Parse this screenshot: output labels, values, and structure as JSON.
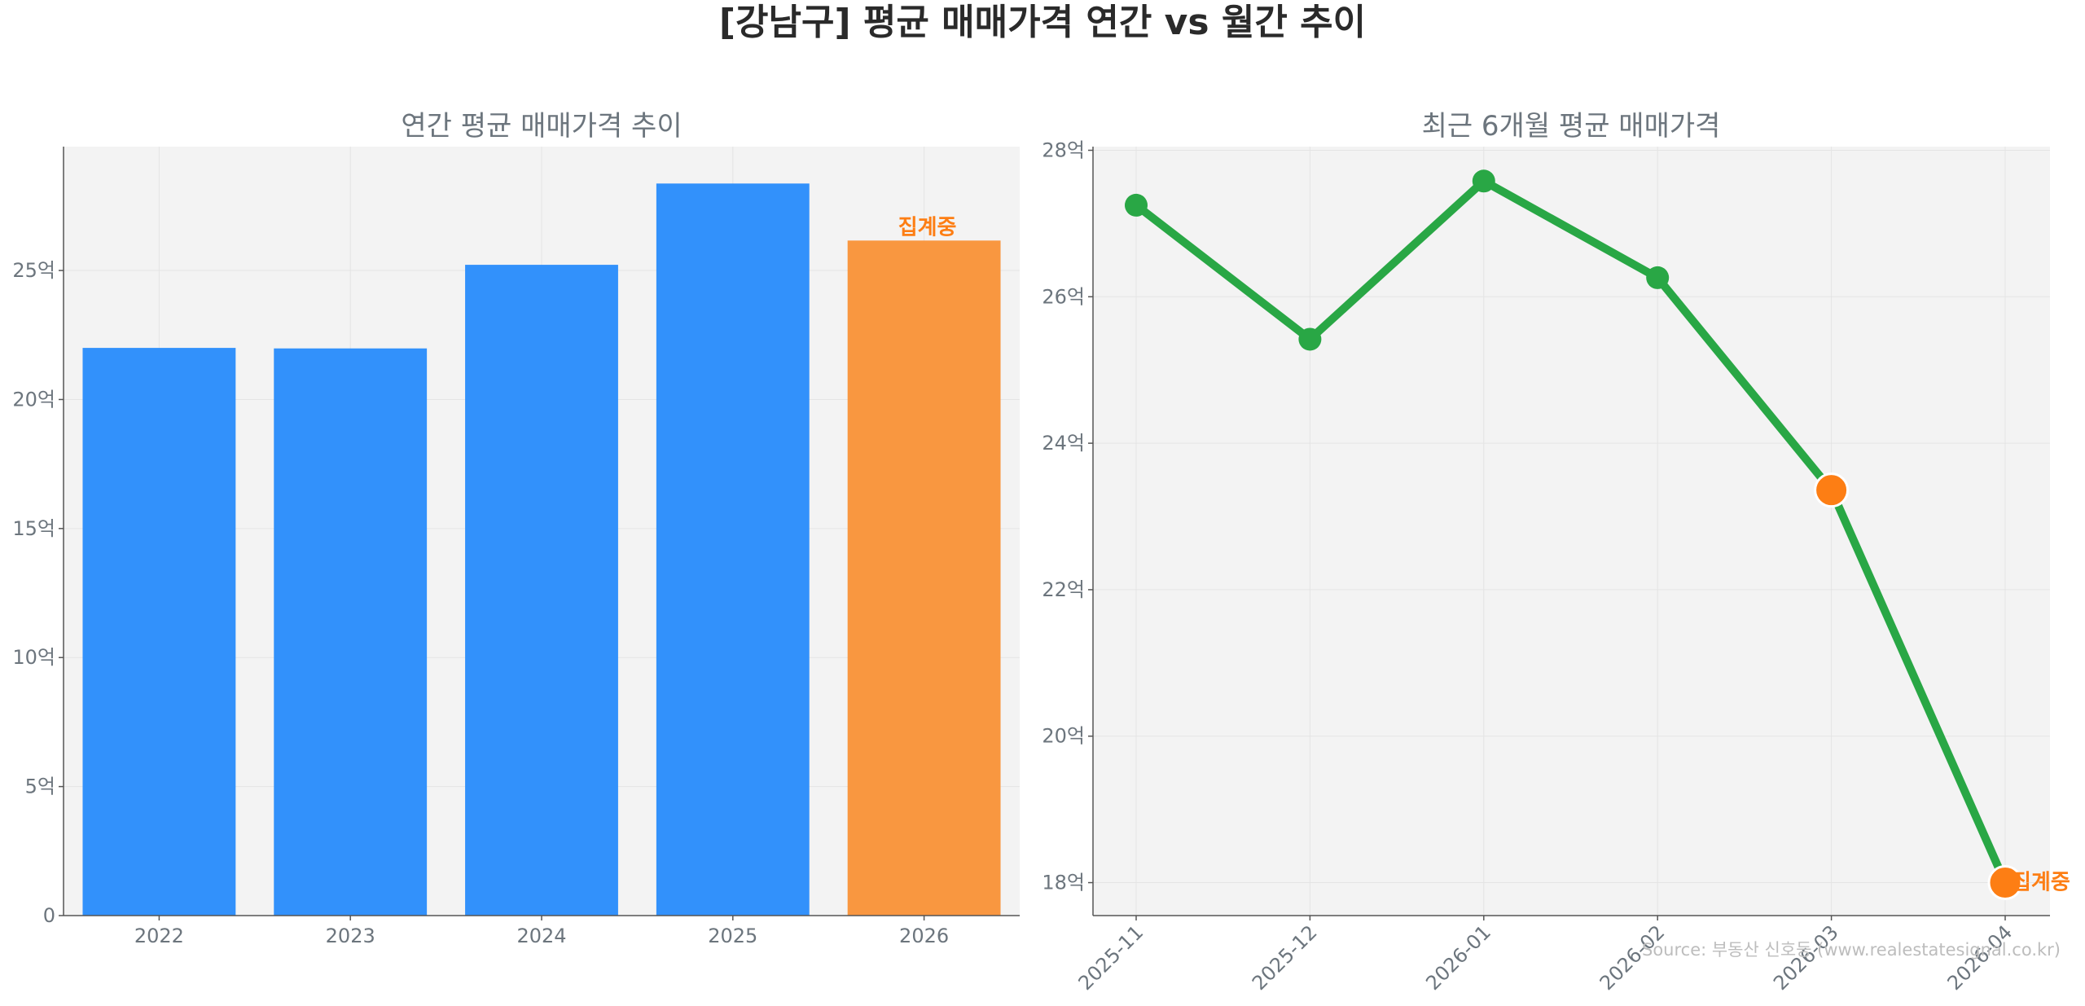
{
  "suptitle": "[강남구] 평균 매매가격 연간 vs 월간 추이",
  "source": "Source: 부동산 신호등 (www.realestatesignal.co.kr)",
  "colors": {
    "bar_primary": "#3291fb",
    "bar_partial": "#f99740",
    "line": "#29a745",
    "point_partial": "#fd7e14",
    "partial_label": "#fd7e14",
    "plot_bg": "#f3f3f3",
    "axis_text": "#6c757d",
    "title_text": "#2a2a2a"
  },
  "chart_data": [
    {
      "type": "bar",
      "title": "연간 평균 매매가격 추이",
      "categories": [
        "2022",
        "2023",
        "2024",
        "2025",
        "2026"
      ],
      "values": [
        22.0,
        21.98,
        25.22,
        28.37,
        26.16
      ],
      "partial_index": 4,
      "partial_label": "집계중",
      "ylim": [
        0,
        29.8
      ],
      "yticks": [
        0,
        5,
        10,
        15,
        20,
        25
      ],
      "ytick_labels": [
        "0",
        "5억",
        "10억",
        "15억",
        "20억",
        "25억"
      ],
      "grid": true
    },
    {
      "type": "line",
      "title": "최근 6개월 평균 매매가격",
      "x": [
        "2025-11",
        "2025-12",
        "2026-01",
        "2026-02",
        "2026-03",
        "2026-04"
      ],
      "values": [
        27.25,
        25.42,
        27.58,
        26.26,
        23.36,
        18.0
      ],
      "highlight_indices": [
        4,
        5
      ],
      "partial_label": "집계중",
      "ylim": [
        17.55,
        28.05
      ],
      "yticks": [
        18,
        20,
        22,
        24,
        26,
        28
      ],
      "ytick_labels": [
        "18억",
        "20억",
        "22억",
        "24억",
        "26억",
        "28억"
      ],
      "grid": true
    }
  ]
}
